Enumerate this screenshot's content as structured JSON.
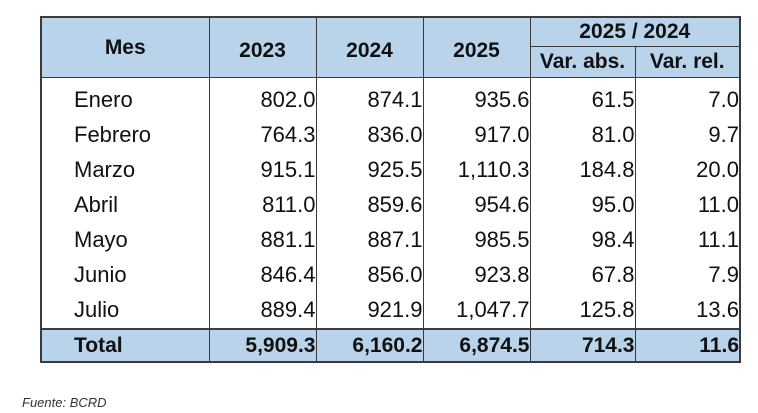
{
  "table": {
    "headers": {
      "mes": "Mes",
      "years": [
        "2023",
        "2024",
        "2025"
      ],
      "comparison": "2025 / 2024",
      "var_abs": "Var. abs.",
      "var_rel": "Var. rel."
    },
    "rows": [
      {
        "mes": "Enero",
        "y2023": "802.0",
        "y2024": "874.1",
        "y2025": "935.6",
        "abs": "61.5",
        "rel": "7.0"
      },
      {
        "mes": "Febrero",
        "y2023": "764.3",
        "y2024": "836.0",
        "y2025": "917.0",
        "abs": "81.0",
        "rel": "9.7"
      },
      {
        "mes": "Marzo",
        "y2023": "915.1",
        "y2024": "925.5",
        "y2025": "1,110.3",
        "abs": "184.8",
        "rel": "20.0"
      },
      {
        "mes": "Abril",
        "y2023": "811.0",
        "y2024": "859.6",
        "y2025": "954.6",
        "abs": "95.0",
        "rel": "11.0"
      },
      {
        "mes": "Mayo",
        "y2023": "881.1",
        "y2024": "887.1",
        "y2025": "985.5",
        "abs": "98.4",
        "rel": "11.1"
      },
      {
        "mes": "Junio",
        "y2023": "846.4",
        "y2024": "856.0",
        "y2025": "923.8",
        "abs": "67.8",
        "rel": "7.9"
      },
      {
        "mes": "Julio",
        "y2023": "889.4",
        "y2024": "921.9",
        "y2025": "1,047.7",
        "abs": "125.8",
        "rel": "13.6"
      }
    ],
    "total": {
      "mes": "Total",
      "y2023": "5,909.3",
      "y2024": "6,160.2",
      "y2025": "6,874.5",
      "abs": "714.3",
      "rel": "11.6"
    }
  },
  "source": "Fuente: BCRD",
  "colors": {
    "header_bg": "#b9d3eb",
    "border": "#3a3a3a"
  }
}
